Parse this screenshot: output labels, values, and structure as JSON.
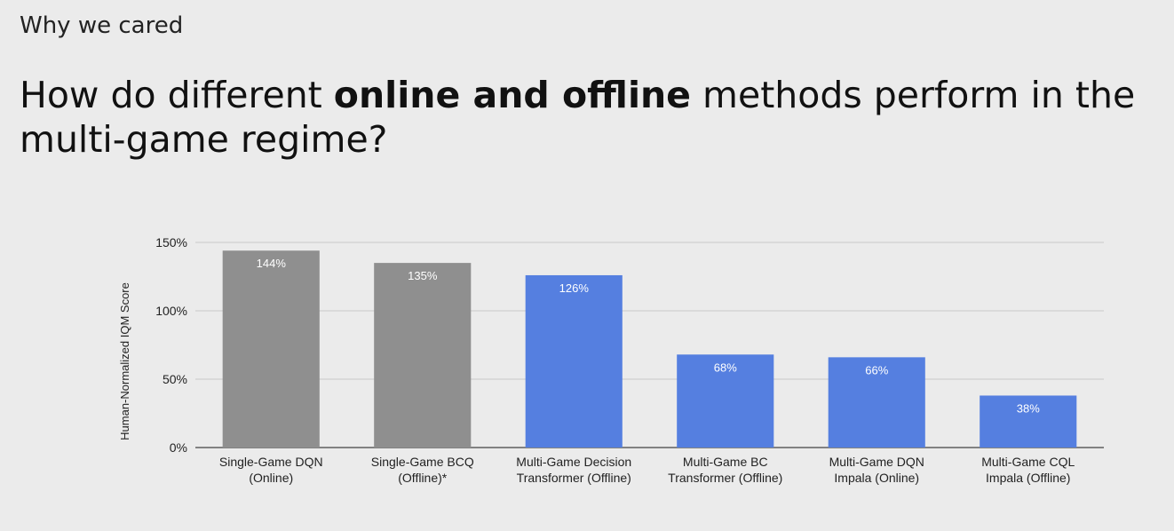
{
  "slide": {
    "section": "Why we cared",
    "title_pre": "How do different ",
    "title_bold": "online and offline",
    "title_post": " methods perform in the multi-game regime?"
  },
  "colors": {
    "single_game": "#8f8f8f",
    "multi_game": "#557fe0",
    "grid": "#c8c8c8",
    "axis": "#444444"
  },
  "chart_data": {
    "type": "bar",
    "categories": [
      [
        "Single-Game DQN",
        "(Online)"
      ],
      [
        "Single-Game BCQ",
        "(Offline)*"
      ],
      [
        "Multi-Game Decision",
        "Transformer (Offline)"
      ],
      [
        "Multi-Game BC",
        "Transformer (Offline)"
      ],
      [
        "Multi-Game DQN",
        "Impala (Online)"
      ],
      [
        "Multi-Game CQL",
        "Impala (Offline)"
      ]
    ],
    "values": [
      144,
      135,
      126,
      68,
      66,
      38
    ],
    "value_labels": [
      "144%",
      "135%",
      "126%",
      "68%",
      "66%",
      "38%"
    ],
    "bar_groups": [
      "single_game",
      "single_game",
      "multi_game",
      "multi_game",
      "multi_game",
      "multi_game"
    ],
    "ylabel": "Human-Normalized IQM Score",
    "yticks": [
      0,
      50,
      100,
      150
    ],
    "ytick_labels": [
      "0%",
      "50%",
      "100%",
      "150%"
    ],
    "ylim": [
      0,
      150
    ],
    "grid": true
  }
}
